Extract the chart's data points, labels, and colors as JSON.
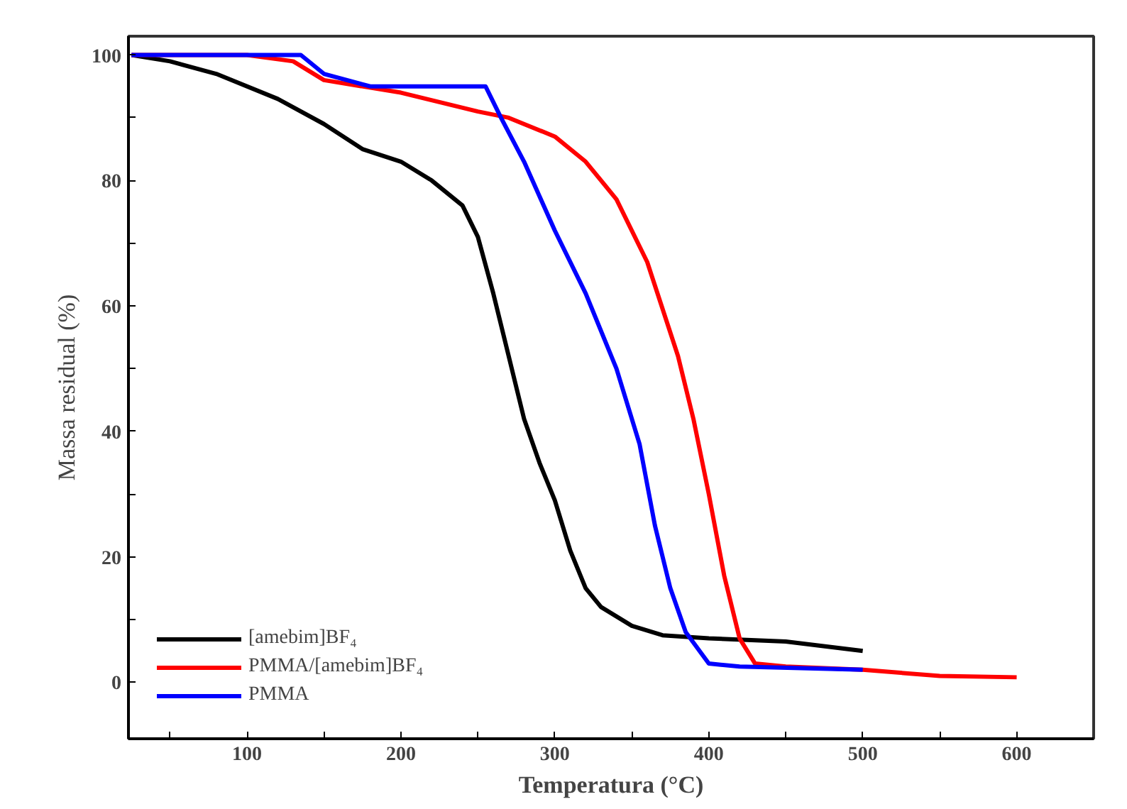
{
  "chart_data": {
    "type": "line",
    "xlabel": "Temperatura (°C)",
    "ylabel": "Massa residual (%)",
    "xlim": [
      23,
      650
    ],
    "ylim": [
      -9,
      103
    ],
    "xticks": [
      {
        "value": 50,
        "label": null
      },
      100,
      {
        "value": 150,
        "label": null
      },
      200,
      {
        "value": 250,
        "label": null
      },
      300,
      {
        "value": 350,
        "label": null
      },
      400,
      {
        "value": 450,
        "label": null
      },
      500,
      {
        "value": 550,
        "label": null
      },
      600
    ],
    "yticks": [
      0,
      {
        "value": 10,
        "label": null
      },
      20,
      {
        "value": 30,
        "label": null
      },
      40,
      {
        "value": 50,
        "label": null
      },
      60,
      {
        "value": 70,
        "label": null
      },
      80,
      {
        "value": 90,
        "label": null
      },
      100
    ],
    "grid": false,
    "legend": "bottom left",
    "line_style": "solid",
    "marker": "none",
    "series": [
      {
        "name": "[amebim]BF₄",
        "color": "#000000",
        "x": [
          25,
          50,
          80,
          120,
          150,
          175,
          200,
          220,
          240,
          250,
          260,
          270,
          280,
          290,
          300,
          310,
          320,
          330,
          350,
          370,
          400,
          450,
          500
        ],
        "values": [
          100,
          99,
          97,
          93,
          89,
          85,
          83,
          80,
          76,
          71,
          62,
          52,
          42,
          35,
          29,
          21,
          15,
          12,
          9,
          7.5,
          7,
          6.5,
          5
        ]
      },
      {
        "name": "PMMA/[amebim]BF₄",
        "color": "#ff0000",
        "x": [
          25,
          100,
          130,
          150,
          200,
          250,
          270,
          300,
          320,
          340,
          360,
          380,
          390,
          400,
          410,
          420,
          430,
          450,
          500,
          550,
          600
        ],
        "values": [
          100,
          100,
          99,
          96,
          94,
          91,
          90,
          87,
          83,
          77,
          67,
          52,
          42,
          30,
          17,
          7,
          3,
          2.5,
          2,
          1,
          0.8
        ]
      },
      {
        "name": "PMMA",
        "color": "#0000ff",
        "x": [
          25,
          135,
          150,
          180,
          200,
          255,
          265,
          280,
          300,
          320,
          340,
          355,
          365,
          375,
          385,
          400,
          420,
          500
        ],
        "values": [
          100,
          100,
          97,
          95,
          95,
          95,
          90,
          83,
          72,
          62,
          50,
          38,
          25,
          15,
          8,
          3,
          2.5,
          2
        ]
      }
    ]
  }
}
